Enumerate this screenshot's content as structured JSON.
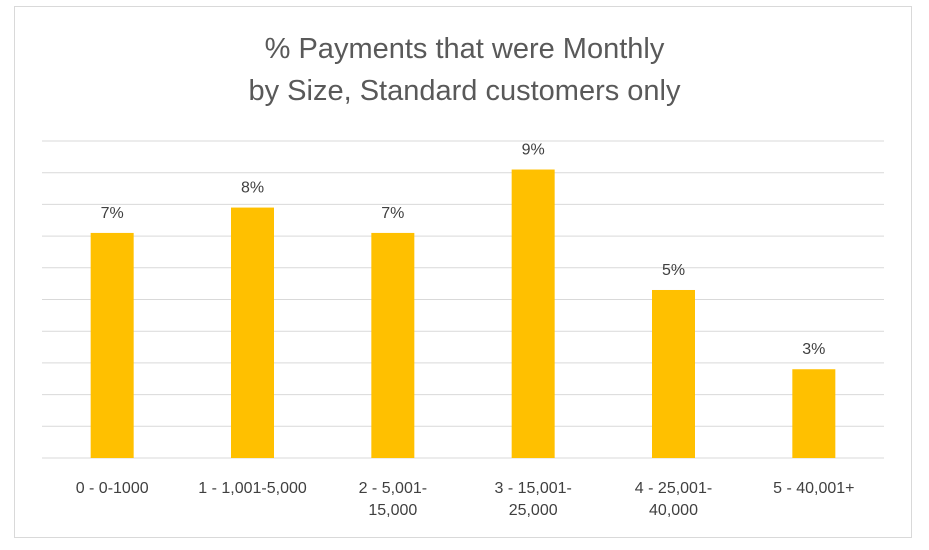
{
  "chart_data": {
    "type": "bar",
    "title_lines": [
      "% Payments that were Monthly",
      "by Size, Standard customers only"
    ],
    "categories": [
      [
        "0 - 0-1000"
      ],
      [
        "1 - 1,001-5,000"
      ],
      [
        "2 - 5,001-",
        "15,000"
      ],
      [
        "3 - 15,001-",
        "25,000"
      ],
      [
        "4 - 25,001-",
        "40,000"
      ],
      [
        "5 - 40,001+"
      ]
    ],
    "values": [
      7.1,
      7.9,
      7.1,
      9.1,
      5.3,
      2.8
    ],
    "data_labels": [
      "7%",
      "8%",
      "7%",
      "9%",
      "5%",
      "3%"
    ],
    "ylim": [
      0,
      10
    ],
    "gridlines": 10,
    "grid": true,
    "legend": "none",
    "colors": {
      "bar": "#FFC000",
      "grid": "#d9d9d9",
      "text": "#404040",
      "title": "#595959"
    }
  }
}
